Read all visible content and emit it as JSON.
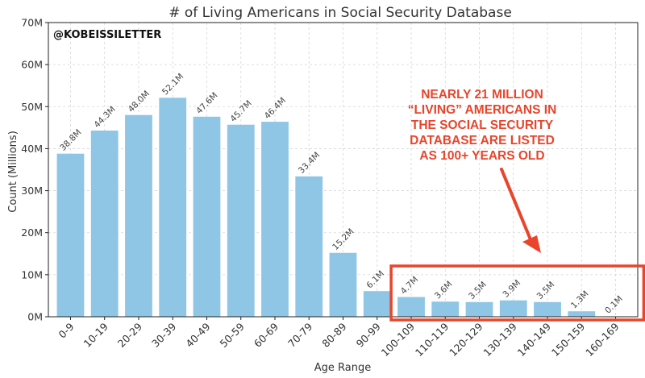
{
  "watermark": "@KOBEISSILETTER",
  "annotation": {
    "lines": [
      "NEARLY 21 MILLION",
      "“LIVING” AMERICANS IN",
      "THE SOCIAL SECURITY",
      "DATABASE ARE LISTED",
      "AS 100+ YEARS OLD"
    ],
    "color": "#e8452c"
  },
  "chart_data": {
    "type": "bar",
    "title": "# of Living Americans in Social Security Database",
    "xlabel": "Age Range",
    "ylabel": "Count (Millions)",
    "ylim": [
      0,
      70
    ],
    "yticks": [
      0,
      10,
      20,
      30,
      40,
      50,
      60,
      70
    ],
    "ytick_labels": [
      "0M",
      "10M",
      "20M",
      "30M",
      "40M",
      "50M",
      "60M",
      "70M"
    ],
    "grid": true,
    "bar_color": "#8fc6e6",
    "categories": [
      "0-9",
      "10-19",
      "20-29",
      "30-39",
      "40-49",
      "50-59",
      "60-69",
      "70-79",
      "80-89",
      "90-99",
      "100-109",
      "110-119",
      "120-129",
      "130-139",
      "140-149",
      "150-159",
      "160-169"
    ],
    "values": [
      38.8,
      44.3,
      48.0,
      52.1,
      47.6,
      45.7,
      46.4,
      33.4,
      15.2,
      6.1,
      4.7,
      3.6,
      3.5,
      3.9,
      3.5,
      1.3,
      0.1
    ],
    "data_labels": [
      "38.8M",
      "44.3M",
      "48.0M",
      "52.1M",
      "47.6M",
      "45.7M",
      "46.4M",
      "33.4M",
      "15.2M",
      "6.1M",
      "4.7M",
      "3.6M",
      "3.5M",
      "3.9M",
      "3.5M",
      "1.3M",
      "0.1M"
    ],
    "highlight": {
      "from_category": "100-109",
      "to_category": "160-169",
      "color": "#e8452c"
    }
  }
}
